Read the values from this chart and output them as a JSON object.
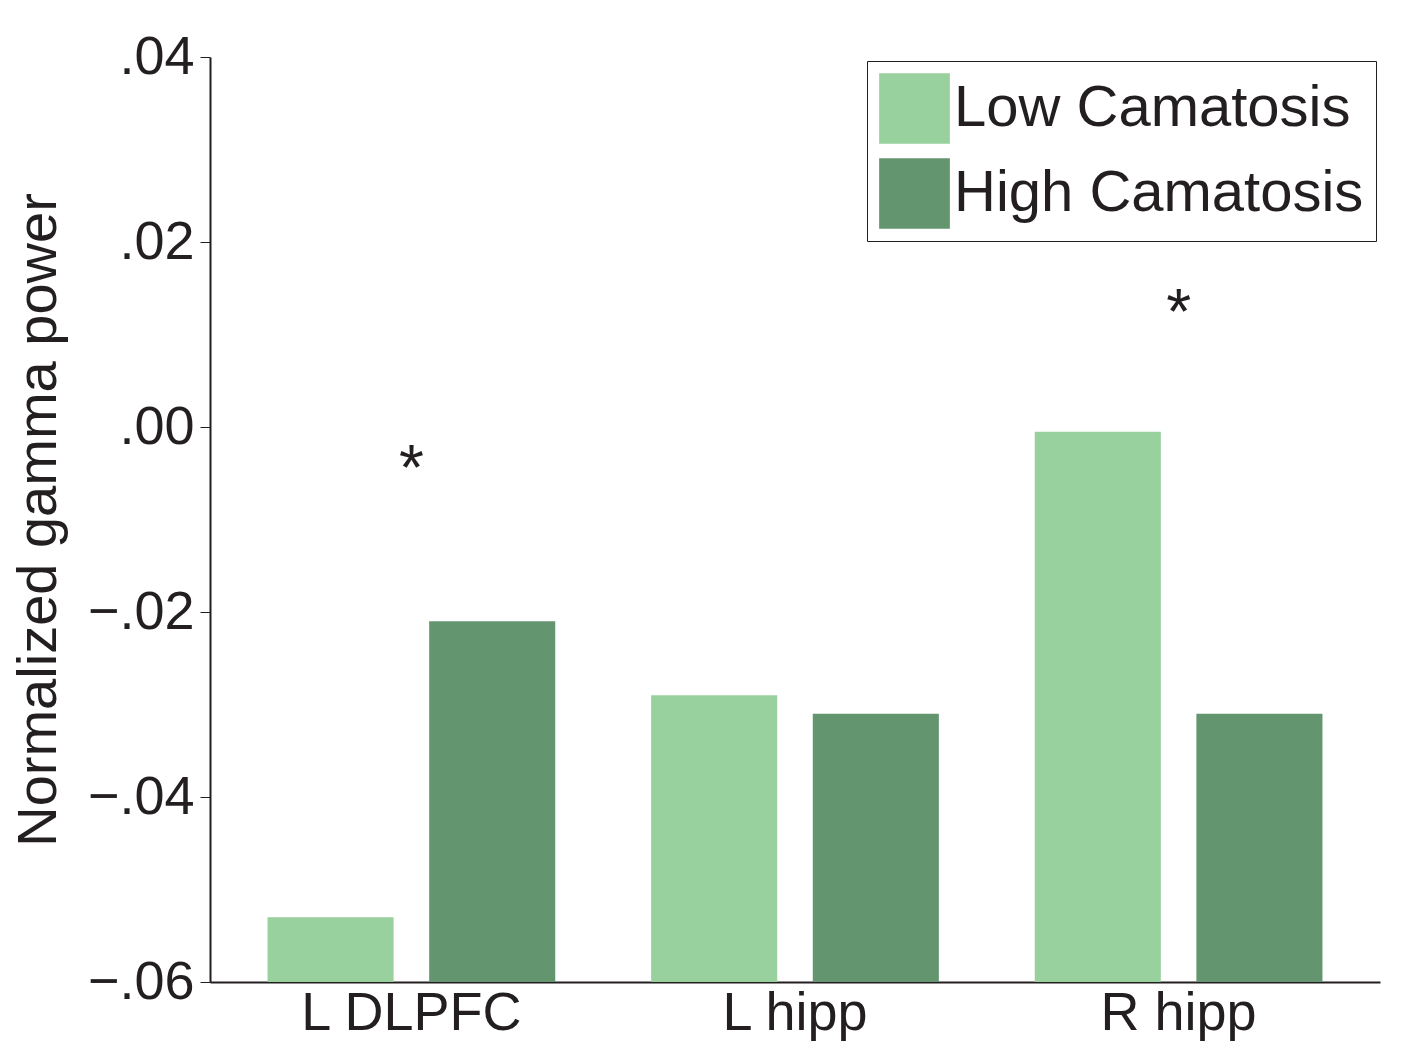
{
  "chart_data": {
    "type": "bar",
    "ylabel": "Normalized gamma power",
    "categories": [
      "L DLPFC",
      "L hipp",
      "R hipp"
    ],
    "series": [
      {
        "name": "Low Camatosis",
        "color": "#99d19e",
        "base": [
          -0.06,
          -0.06,
          -0.06
        ],
        "values": [
          0.007,
          0.031,
          0.0595
        ]
      },
      {
        "name": "High Camatosis",
        "color": "#63956e",
        "base": [
          -0.06,
          -0.06,
          -0.06
        ],
        "values": [
          0.039,
          0.029,
          0.029
        ]
      }
    ],
    "ylim": [
      -0.06,
      0.04
    ],
    "yticks": [
      {
        "value": -0.06,
        "label": "−.06"
      },
      {
        "value": -0.04,
        "label": "−.04"
      },
      {
        "value": -0.02,
        "label": "−.02"
      },
      {
        "value": 0,
        "label": ".00"
      },
      {
        "value": 0.02,
        "label": ".02"
      },
      {
        "value": 0.04,
        "label": ".04"
      }
    ],
    "annotations": [
      "*",
      "*"
    ],
    "legend": "top right",
    "grid": false
  }
}
